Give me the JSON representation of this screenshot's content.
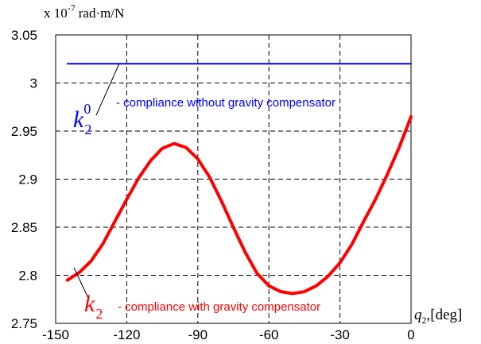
{
  "chart_data": {
    "type": "line",
    "y_unit": {
      "multiplier_base": "x 10",
      "multiplier_exp": "-7",
      "units": "rad·m/N"
    },
    "x_label": {
      "symbol": "q",
      "subscript": "2",
      "unit": ",[deg]"
    },
    "xlim": [
      -150,
      0
    ],
    "ylim": [
      2.75,
      3.05
    ],
    "x_ticks": [
      -150,
      -120,
      -90,
      -60,
      -30,
      0
    ],
    "x_tick_labels": [
      "-150",
      "-120",
      "-90",
      "-60",
      "-30",
      "0"
    ],
    "y_ticks": [
      2.75,
      2.8,
      2.85,
      2.9,
      2.95,
      3.0,
      3.05
    ],
    "y_tick_labels": [
      "2.75",
      "2.8",
      "2.85",
      "2.9",
      "2.95",
      "3",
      "3.05"
    ],
    "grid": true,
    "series": [
      {
        "color": "#0000ff",
        "label_symbol": "k",
        "label_subscript": "2",
        "label_superscript": "0",
        "description": "- compliance without gravity compensator",
        "x": [
          -145,
          0
        ],
        "y": [
          3.02,
          3.02
        ]
      },
      {
        "color": "#ff0000",
        "label_symbol": "k",
        "label_subscript": "2",
        "description": "- compliance with gravity compensator",
        "x": [
          -145,
          -140,
          -135,
          -130,
          -125,
          -120,
          -115,
          -110,
          -105,
          -100,
          -95,
          -90,
          -85,
          -80,
          -75,
          -70,
          -65,
          -60,
          -55,
          -50,
          -45,
          -40,
          -35,
          -30,
          -25,
          -20,
          -15,
          -10,
          -5,
          0
        ],
        "y": [
          2.795,
          2.803,
          2.815,
          2.833,
          2.856,
          2.879,
          2.901,
          2.919,
          2.932,
          2.937,
          2.933,
          2.921,
          2.902,
          2.877,
          2.85,
          2.824,
          2.802,
          2.789,
          2.783,
          2.781,
          2.783,
          2.789,
          2.799,
          2.813,
          2.832,
          2.856,
          2.879,
          2.905,
          2.933,
          2.965
        ]
      }
    ]
  }
}
